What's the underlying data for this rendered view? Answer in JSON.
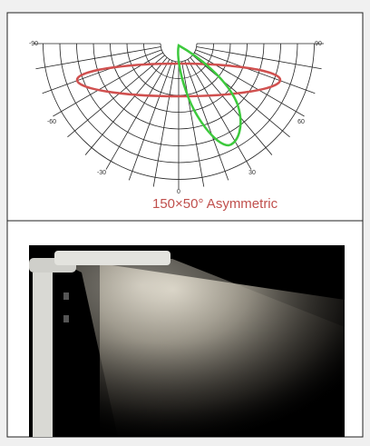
{
  "diagram": {
    "angle_labels": [
      "-90",
      "90",
      "-60",
      "60",
      "-30",
      "30",
      "0"
    ],
    "caption": "150×50° Asymmetric"
  }
}
